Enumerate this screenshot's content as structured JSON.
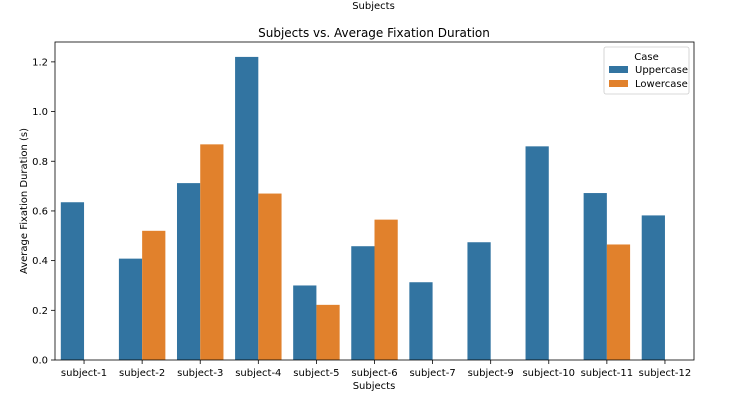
{
  "page_header": "Subjects",
  "chart_data": {
    "type": "bar",
    "title": "Subjects vs. Average Fixation Duration",
    "xlabel": "Subjects",
    "ylabel": "Average Fixation Duration (s)",
    "ylim": [
      0,
      1.28
    ],
    "yticks": [
      0.0,
      0.2,
      0.4,
      0.6,
      0.8,
      1.0,
      1.2
    ],
    "ytick_labels": [
      "0.0",
      "0.2",
      "0.4",
      "0.6",
      "0.8",
      "1.0",
      "1.2"
    ],
    "categories": [
      "subject-1",
      "subject-2",
      "subject-3",
      "subject-4",
      "subject-5",
      "subject-6",
      "subject-7",
      "subject-9",
      "subject-10",
      "subject-11",
      "subject-12"
    ],
    "series": [
      {
        "name": "Uppercase",
        "color": "#3274a1",
        "values": [
          0.635,
          0.408,
          0.712,
          1.22,
          0.3,
          0.458,
          0.313,
          0.474,
          0.86,
          0.672,
          0.582
        ]
      },
      {
        "name": "Lowercase",
        "color": "#e1812c",
        "values": [
          null,
          0.52,
          0.868,
          0.67,
          0.222,
          0.565,
          null,
          null,
          null,
          0.465,
          null
        ]
      }
    ],
    "legend": {
      "title": "Case",
      "placement": "top-right"
    },
    "grid": false
  }
}
